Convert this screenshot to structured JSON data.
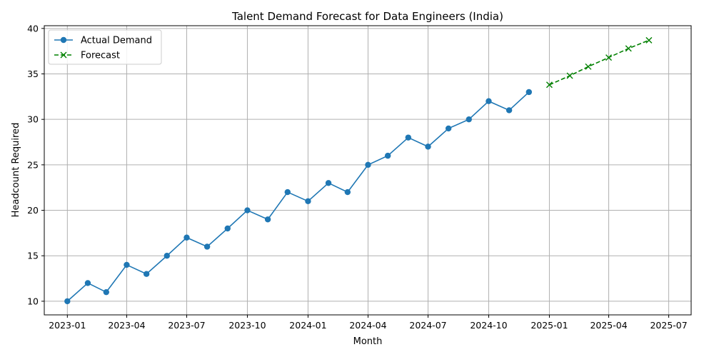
{
  "chart_data": {
    "type": "line",
    "title": "Talent Demand Forecast for Data Engineers (India)",
    "xlabel": "Month",
    "ylabel": "Headcount Required",
    "x_tick_labels": [
      "2023-01",
      "2023-04",
      "2023-07",
      "2023-10",
      "2024-01",
      "2024-04",
      "2024-07",
      "2024-10",
      "2025-01",
      "2025-04",
      "2025-07"
    ],
    "y_ticks": [
      10,
      15,
      20,
      25,
      30,
      35,
      40
    ],
    "ylim": [
      8.5,
      40.3
    ],
    "xlim": [
      "2022-11-27",
      "2025-08-04"
    ],
    "grid": true,
    "legend_position": "top-left",
    "series": [
      {
        "name": "Actual Demand",
        "color": "#1f77b4",
        "linestyle": "solid",
        "marker": "circle",
        "x": [
          "2023-01-01",
          "2023-02-01",
          "2023-03-01",
          "2023-04-01",
          "2023-05-01",
          "2023-06-01",
          "2023-07-01",
          "2023-08-01",
          "2023-09-01",
          "2023-10-01",
          "2023-11-01",
          "2023-12-01",
          "2024-01-01",
          "2024-02-01",
          "2024-03-01",
          "2024-04-01",
          "2024-05-01",
          "2024-06-01",
          "2024-07-01",
          "2024-08-01",
          "2024-09-01",
          "2024-10-01",
          "2024-11-01",
          "2024-12-01"
        ],
        "values": [
          10,
          12,
          11,
          14,
          13,
          15,
          17,
          16,
          18,
          20,
          19,
          22,
          21,
          23,
          22,
          25,
          26,
          28,
          27,
          29,
          30,
          32,
          31,
          33
        ]
      },
      {
        "name": "Forecast",
        "color": "#008000",
        "linestyle": "dashed",
        "marker": "x",
        "x": [
          "2025-01-01",
          "2025-02-01",
          "2025-03-01",
          "2025-04-01",
          "2025-05-01",
          "2025-06-01"
        ],
        "values": [
          33.8,
          34.8,
          35.8,
          36.8,
          37.8,
          38.7
        ]
      }
    ]
  }
}
